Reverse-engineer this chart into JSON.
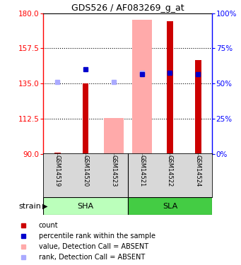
{
  "title": "GDS526 / AF083269_g_at",
  "samples": [
    "GSM14519",
    "GSM14520",
    "GSM14523",
    "GSM14521",
    "GSM14522",
    "GSM14524"
  ],
  "ylim": [
    90,
    180
  ],
  "yticks": [
    90,
    112.5,
    135,
    157.5,
    180
  ],
  "y2ticks": [
    0,
    25,
    50,
    75,
    100
  ],
  "y2lim": [
    0,
    100
  ],
  "red_bar_values": [
    90.5,
    135,
    90.2,
    90.3,
    175,
    150
  ],
  "blue_square_values": [
    null,
    144,
    null,
    141,
    142,
    141
  ],
  "pink_bar_values": [
    null,
    null,
    113,
    176,
    null,
    null
  ],
  "lavender_square_values": [
    136,
    null,
    136,
    142,
    null,
    null
  ],
  "red_color": "#cc0000",
  "blue_color": "#0000cc",
  "pink_color": "#ffaaaa",
  "lavender_color": "#aaaaff",
  "sha_color": "#bbffbb",
  "sla_color": "#44cc44",
  "sample_bg": "#d8d8d8",
  "legend_items": [
    [
      "#cc0000",
      "count"
    ],
    [
      "#0000cc",
      "percentile rank within the sample"
    ],
    [
      "#ffaaaa",
      "value, Detection Call = ABSENT"
    ],
    [
      "#aaaaff",
      "rank, Detection Call = ABSENT"
    ]
  ]
}
